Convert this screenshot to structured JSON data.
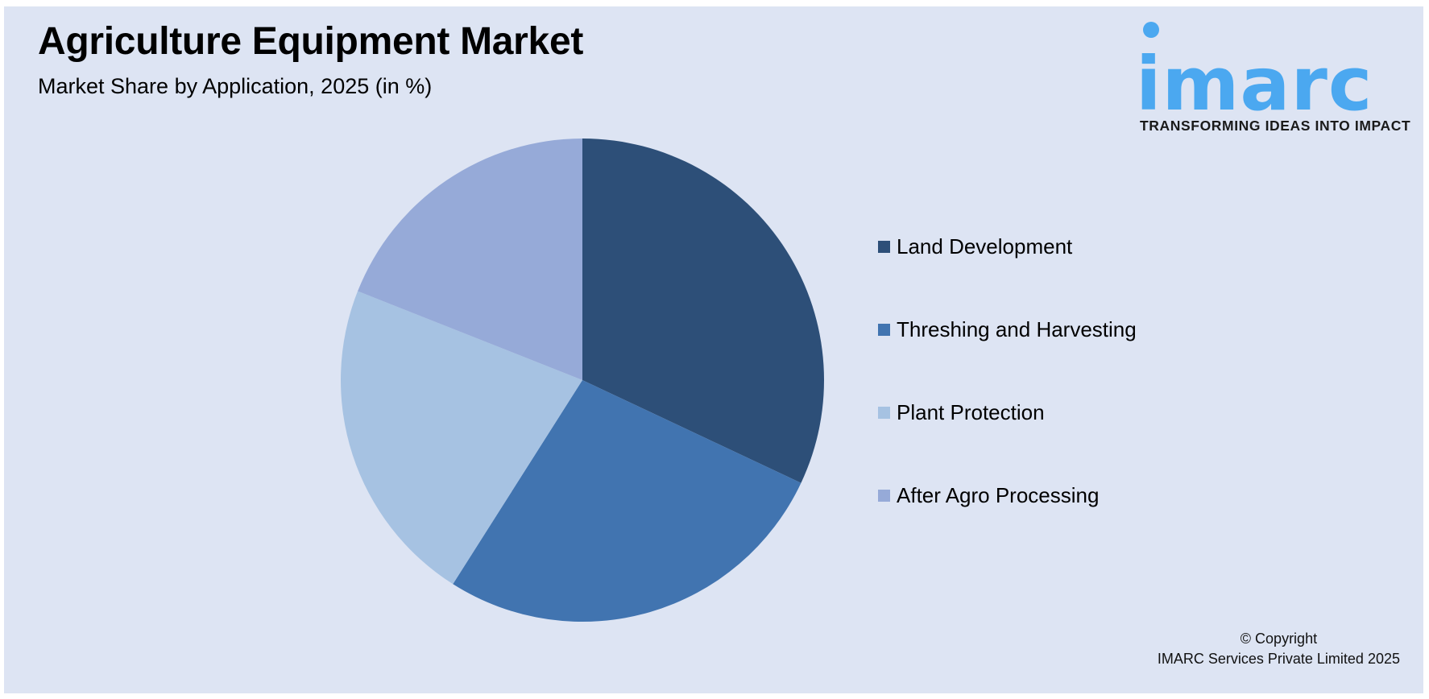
{
  "header": {
    "title": "Agriculture Equipment Market",
    "subtitle": "Market Share by Application, 2025 (in %)"
  },
  "logo": {
    "wordmark": "imarc",
    "tagline": "TRANSFORMING IDEAS INTO IMPACT",
    "color": "#4ba8f0"
  },
  "legend": {
    "items": [
      {
        "label": "Land Development",
        "color": "#2d4f78"
      },
      {
        "label": "Threshing and Harvesting",
        "color": "#4174b0"
      },
      {
        "label": "Plant Protection",
        "color": "#a6c2e2"
      },
      {
        "label": "After Agro Processing",
        "color": "#96aad8"
      }
    ]
  },
  "footer": {
    "copyright_line1": "© Copyright",
    "copyright_line2": "IMARC Services Private Limited 2025"
  },
  "colors": {
    "background": "#dde4f3",
    "text": "#000000"
  },
  "chart_data": {
    "type": "pie",
    "title": "Agriculture Equipment Market",
    "subtitle": "Market Share by Application, 2025 (in %)",
    "categories": [
      "Land Development",
      "Threshing and Harvesting",
      "Plant Protection",
      "After Agro Processing"
    ],
    "values": [
      32,
      27,
      22,
      19
    ],
    "colors": [
      "#2d4f78",
      "#4174b0",
      "#a6c2e2",
      "#96aad8"
    ],
    "start_angle": "12 o'clock, clockwise",
    "data_labels": false,
    "legend_position": "right"
  }
}
